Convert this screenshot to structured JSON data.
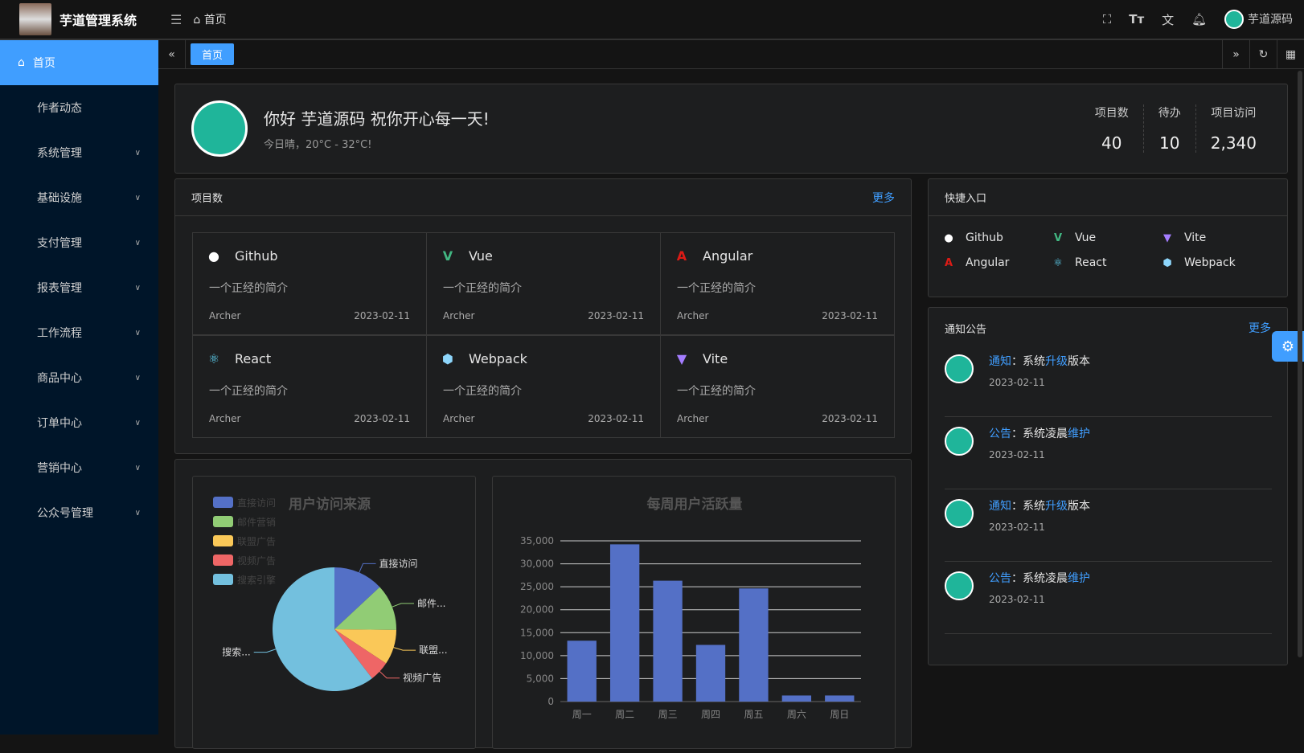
{
  "header": {
    "title": "芋道管理系统",
    "breadcrumb": "首页",
    "user": "芋道源码"
  },
  "sidebar": {
    "items": [
      {
        "label": "首页",
        "active": true
      },
      {
        "label": "作者动态"
      },
      {
        "label": "系统管理",
        "expandable": true
      },
      {
        "label": "基础设施",
        "expandable": true
      },
      {
        "label": "支付管理",
        "expandable": true
      },
      {
        "label": "报表管理",
        "expandable": true
      },
      {
        "label": "工作流程",
        "expandable": true
      },
      {
        "label": "商品中心",
        "expandable": true
      },
      {
        "label": "订单中心",
        "expandable": true
      },
      {
        "label": "营销中心",
        "expandable": true
      },
      {
        "label": "公众号管理",
        "expandable": true
      }
    ]
  },
  "tabs": [
    {
      "label": "首页"
    }
  ],
  "welcome": {
    "greeting": "你好 芋道源码 祝你开心每一天!",
    "weather": "今日晴，20°C - 32°C!",
    "stats": [
      {
        "label": "项目数",
        "value": "40"
      },
      {
        "label": "待办",
        "value": "10"
      },
      {
        "label": "项目访问",
        "value": "2,340"
      }
    ]
  },
  "projects": {
    "title": "项目数",
    "more": "更多",
    "items": [
      {
        "name": "Github",
        "icon": "github-icon",
        "color": "#ffffff",
        "desc": "一个正经的简介",
        "author": "Archer",
        "date": "2023-02-11"
      },
      {
        "name": "Vue",
        "icon": "vue-icon",
        "color": "#42b883",
        "desc": "一个正经的简介",
        "author": "Archer",
        "date": "2023-02-11"
      },
      {
        "name": "Angular",
        "icon": "angular-icon",
        "color": "#dd1b16",
        "desc": "一个正经的简介",
        "author": "Archer",
        "date": "2023-02-11"
      },
      {
        "name": "React",
        "icon": "react-icon",
        "color": "#61dafb",
        "desc": "一个正经的简介",
        "author": "Archer",
        "date": "2023-02-11"
      },
      {
        "name": "Webpack",
        "icon": "webpack-icon",
        "color": "#8ed6fb",
        "desc": "一个正经的简介",
        "author": "Archer",
        "date": "2023-02-11"
      },
      {
        "name": "Vite",
        "icon": "vite-icon",
        "color": "#a47dff",
        "desc": "一个正经的简介",
        "author": "Archer",
        "date": "2023-02-11"
      }
    ]
  },
  "shortcuts": {
    "title": "快捷入口",
    "items": [
      {
        "name": "Github",
        "color": "#ffffff"
      },
      {
        "name": "Vue",
        "color": "#42b883"
      },
      {
        "name": "Vite",
        "color": "#a47dff"
      },
      {
        "name": "Angular",
        "color": "#dd1b16"
      },
      {
        "name": "React",
        "color": "#61dafb"
      },
      {
        "name": "Webpack",
        "color": "#8ed6fb"
      }
    ]
  },
  "notices": {
    "title": "通知公告",
    "more": "更多",
    "items": [
      {
        "type": "通知",
        "sep": "：",
        "pre": "系统",
        "hl": "升级",
        "post": "版本",
        "date": "2023-02-11"
      },
      {
        "type": "公告",
        "sep": "：",
        "pre": "系统凌晨",
        "hl": "维护",
        "post": "",
        "date": "2023-02-11"
      },
      {
        "type": "通知",
        "sep": "：",
        "pre": "系统",
        "hl": "升级",
        "post": "版本",
        "date": "2023-02-11"
      },
      {
        "type": "公告",
        "sep": "：",
        "pre": "系统凌晨",
        "hl": "维护",
        "post": "",
        "date": "2023-02-11"
      }
    ]
  },
  "chart_data": [
    {
      "type": "pie",
      "title": "用户访问来源",
      "legend": "top-left",
      "categories": [
        "直接访问",
        "邮件营销",
        "联盟广告",
        "视频广告",
        "搜索引擎"
      ],
      "labels": [
        "直接访问",
        "邮件...",
        "联盟...",
        "视频广告",
        "搜索..."
      ],
      "values": [
        335,
        310,
        234,
        135,
        1548
      ],
      "colors": [
        "#5470c6",
        "#91cc75",
        "#fac858",
        "#ee6666",
        "#73c0de"
      ]
    },
    {
      "type": "bar",
      "title": "每周用户活跃量",
      "categories": [
        "周一",
        "周二",
        "周三",
        "周四",
        "周五",
        "周六",
        "周日"
      ],
      "values": [
        13253,
        34235,
        26321,
        12340,
        24643,
        1322,
        1324
      ],
      "ylim": [
        0,
        35000
      ],
      "yticks": [
        "0",
        "5,000",
        "10,000",
        "15,000",
        "20,000",
        "25,000",
        "30,000",
        "35,000"
      ],
      "grid": true,
      "color": "#5470c6"
    }
  ]
}
